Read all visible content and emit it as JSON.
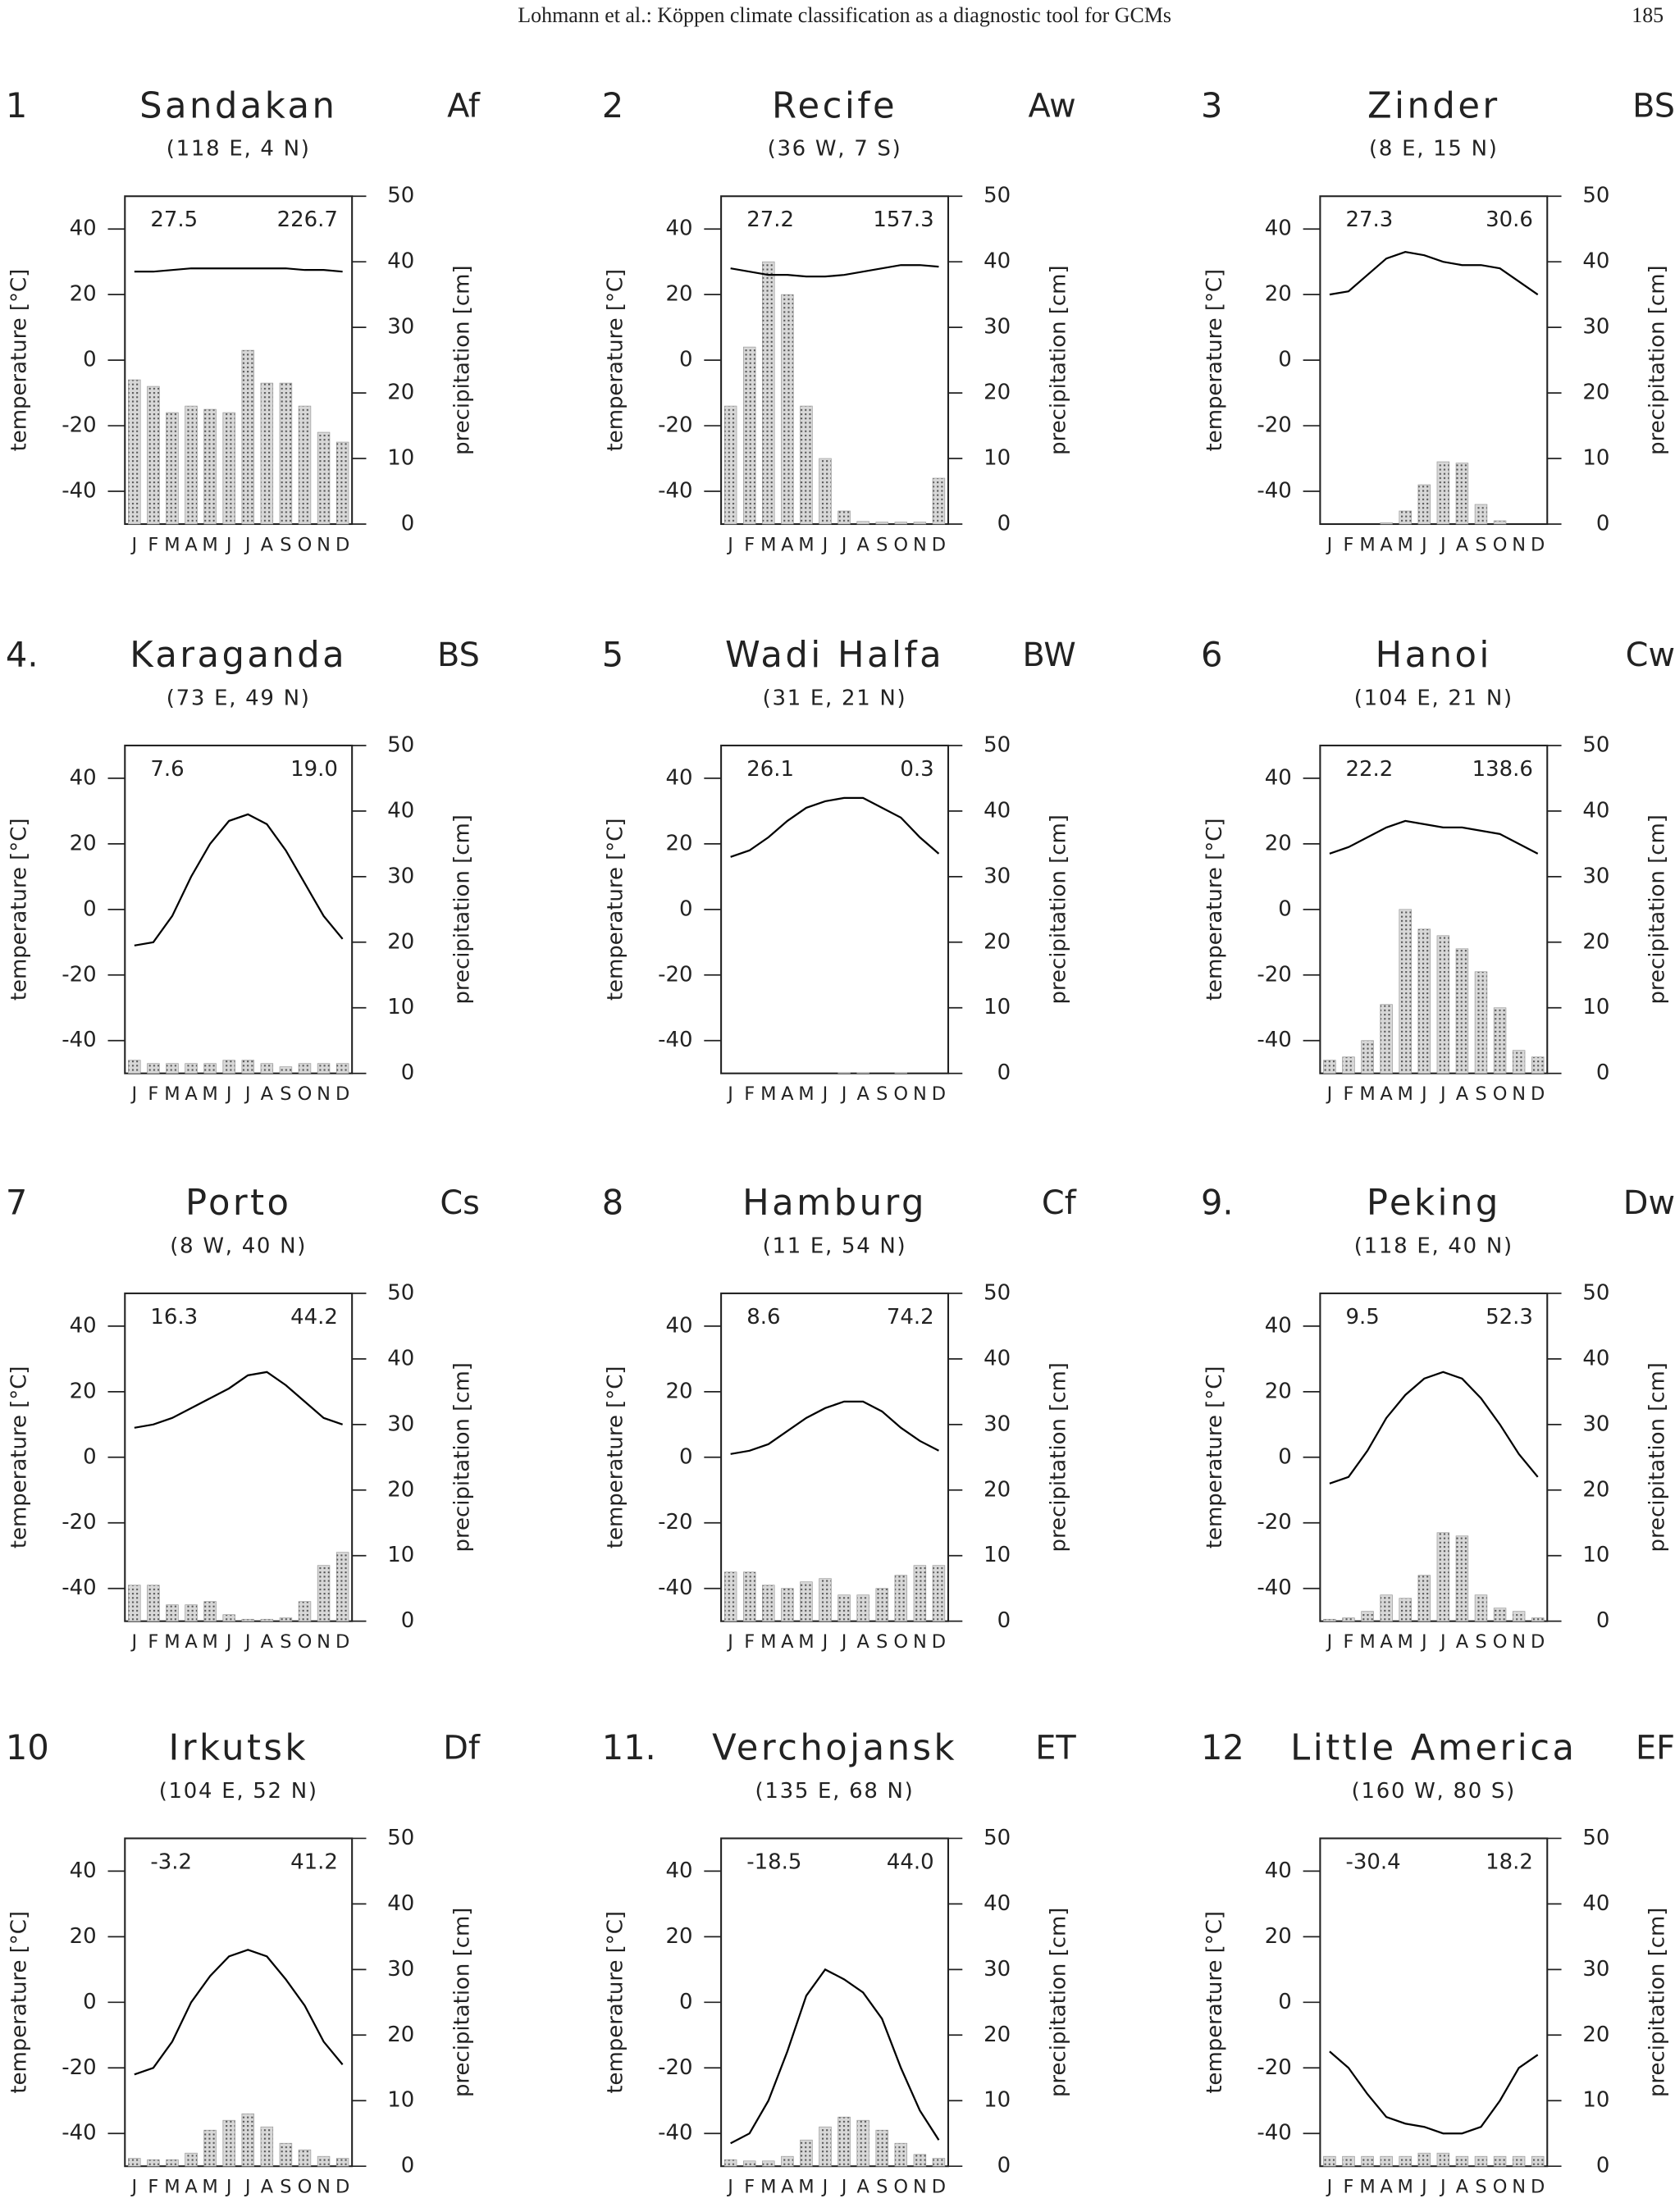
{
  "header": {
    "running_title": "Lohmann et al.: Köppen climate classification as a diagnostic tool for GCMs",
    "page_number": "185"
  },
  "chart_data": [
    {
      "type": "combo",
      "number": "1",
      "title": "Sandakan",
      "subtitle": "(118 E, 4 N)",
      "code": "Af",
      "annotations": [
        "27.5",
        "226.7"
      ],
      "y_label": "temperature [°C]",
      "y2_label": "precipitation [cm]",
      "categories": [
        "J",
        "F",
        "M",
        "A",
        "M",
        "J",
        "J",
        "A",
        "S",
        "O",
        "N",
        "D"
      ],
      "ylim": [
        -50,
        50
      ],
      "yticks": [
        -40,
        -20,
        0,
        20,
        40
      ],
      "y2lim": [
        0,
        50
      ],
      "y2ticks": [
        0,
        10,
        20,
        30,
        40,
        50
      ],
      "series": [
        {
          "type": "line",
          "color": "#000000",
          "values": [
            27,
            27,
            27.5,
            28,
            28,
            28,
            28,
            28,
            28,
            27.5,
            27.5,
            27
          ]
        },
        {
          "type": "bar",
          "axis": "y2",
          "color": "#999999",
          "values": [
            22,
            21,
            17,
            18,
            17.5,
            17,
            26.5,
            21.5,
            21.5,
            18,
            14,
            12.5
          ]
        }
      ]
    },
    {
      "type": "combo",
      "number": "2",
      "title": "Recife",
      "subtitle": "(36 W, 7 S)",
      "code": "Aw",
      "annotations": [
        "27.2",
        "157.3"
      ],
      "y_label": "temperature [°C]",
      "y2_label": "precipitation [cm]",
      "categories": [
        "J",
        "F",
        "M",
        "A",
        "M",
        "J",
        "J",
        "A",
        "S",
        "O",
        "N",
        "D"
      ],
      "ylim": [
        -50,
        50
      ],
      "yticks": [
        -40,
        -20,
        0,
        20,
        40
      ],
      "y2lim": [
        0,
        50
      ],
      "y2ticks": [
        0,
        10,
        20,
        30,
        40,
        50
      ],
      "series": [
        {
          "type": "line",
          "color": "#000000",
          "values": [
            28,
            27,
            26,
            26,
            25.5,
            25.5,
            26,
            27,
            28,
            29,
            29,
            28.5
          ]
        },
        {
          "type": "bar",
          "axis": "y2",
          "color": "#999999",
          "values": [
            18,
            27,
            40,
            35,
            18,
            10,
            2,
            0.4,
            0.3,
            0.3,
            0.3,
            7
          ]
        }
      ]
    },
    {
      "type": "combo",
      "number": "3",
      "title": "Zinder",
      "subtitle": "(8 E, 15 N)",
      "code": "BS",
      "annotations": [
        "27.3",
        "30.6"
      ],
      "y_label": "temperature [°C]",
      "y2_label": "precipitation [cm]",
      "categories": [
        "J",
        "F",
        "M",
        "A",
        "M",
        "J",
        "J",
        "A",
        "S",
        "O",
        "N",
        "D"
      ],
      "ylim": [
        -50,
        50
      ],
      "yticks": [
        -40,
        -20,
        0,
        20,
        40
      ],
      "y2lim": [
        0,
        50
      ],
      "y2ticks": [
        0,
        10,
        20,
        30,
        40,
        50
      ],
      "series": [
        {
          "type": "line",
          "color": "#000000",
          "values": [
            20,
            21,
            26,
            31,
            33,
            32,
            30,
            29,
            29,
            28,
            24,
            20
          ]
        },
        {
          "type": "bar",
          "axis": "y2",
          "color": "#999999",
          "values": [
            0,
            0,
            0,
            0.2,
            2,
            6,
            9.5,
            9.3,
            3,
            0.5,
            0,
            0
          ]
        }
      ]
    },
    {
      "type": "combo",
      "number": "4.",
      "title": "Karaganda",
      "subtitle": "(73 E, 49 N)",
      "code": "BS",
      "annotations": [
        "7.6",
        "19.0"
      ],
      "y_label": "temperature [°C]",
      "y2_label": "precipitation [cm]",
      "categories": [
        "J",
        "F",
        "M",
        "A",
        "M",
        "J",
        "J",
        "A",
        "S",
        "O",
        "N",
        "D"
      ],
      "ylim": [
        -50,
        50
      ],
      "yticks": [
        -40,
        -20,
        0,
        20,
        40
      ],
      "y2lim": [
        0,
        50
      ],
      "y2ticks": [
        0,
        10,
        20,
        30,
        40,
        50
      ],
      "series": [
        {
          "type": "line",
          "color": "#000000",
          "values": [
            -11,
            -10,
            -2,
            10,
            20,
            27,
            29,
            26,
            18,
            8,
            -2,
            -9
          ]
        },
        {
          "type": "bar",
          "axis": "y2",
          "color": "#999999",
          "values": [
            2,
            1.5,
            1.5,
            1.5,
            1.5,
            2,
            2,
            1.5,
            1,
            1.5,
            1.5,
            1.5
          ]
        }
      ]
    },
    {
      "type": "combo",
      "number": "5",
      "title": "Wadi Halfa",
      "subtitle": "(31 E, 21 N)",
      "code": "BW",
      "annotations": [
        "26.1",
        "0.3"
      ],
      "y_label": "temperature [°C]",
      "y2_label": "precipitation [cm]",
      "categories": [
        "J",
        "F",
        "M",
        "A",
        "M",
        "J",
        "J",
        "A",
        "S",
        "O",
        "N",
        "D"
      ],
      "ylim": [
        -50,
        50
      ],
      "yticks": [
        -40,
        -20,
        0,
        20,
        40
      ],
      "y2lim": [
        0,
        50
      ],
      "y2ticks": [
        0,
        10,
        20,
        30,
        40,
        50
      ],
      "series": [
        {
          "type": "line",
          "color": "#000000",
          "values": [
            16,
            18,
            22,
            27,
            31,
            33,
            34,
            34,
            31,
            28,
            22,
            17
          ]
        },
        {
          "type": "bar",
          "axis": "y2",
          "color": "#999999",
          "values": [
            0,
            0,
            0,
            0,
            0,
            0,
            0.1,
            0.1,
            0,
            0.1,
            0,
            0
          ]
        }
      ]
    },
    {
      "type": "combo",
      "number": "6",
      "title": "Hanoi",
      "subtitle": "(104 E, 21 N)",
      "code": "Cw",
      "annotations": [
        "22.2",
        "138.6"
      ],
      "y_label": "temperature [°C]",
      "y2_label": "precipitation [cm]",
      "categories": [
        "J",
        "F",
        "M",
        "A",
        "M",
        "J",
        "J",
        "A",
        "S",
        "O",
        "N",
        "D"
      ],
      "ylim": [
        -50,
        50
      ],
      "yticks": [
        -40,
        -20,
        0,
        20,
        40
      ],
      "y2lim": [
        0,
        50
      ],
      "y2ticks": [
        0,
        10,
        20,
        30,
        40,
        50
      ],
      "series": [
        {
          "type": "line",
          "color": "#000000",
          "values": [
            17,
            19,
            22,
            25,
            27,
            26,
            25,
            25,
            24,
            23,
            20,
            17
          ]
        },
        {
          "type": "bar",
          "axis": "y2",
          "color": "#999999",
          "values": [
            2,
            2.5,
            5,
            10.5,
            25,
            22,
            21,
            19,
            15.5,
            10,
            3.5,
            2.5
          ]
        }
      ]
    },
    {
      "type": "combo",
      "number": "7",
      "title": "Porto",
      "subtitle": "(8 W, 40 N)",
      "code": "Cs",
      "annotations": [
        "16.3",
        "44.2"
      ],
      "y_label": "temperature [°C]",
      "y2_label": "precipitation [cm]",
      "categories": [
        "J",
        "F",
        "M",
        "A",
        "M",
        "J",
        "J",
        "A",
        "S",
        "O",
        "N",
        "D"
      ],
      "ylim": [
        -50,
        50
      ],
      "yticks": [
        -40,
        -20,
        0,
        20,
        40
      ],
      "y2lim": [
        0,
        50
      ],
      "y2ticks": [
        0,
        10,
        20,
        30,
        40,
        50
      ],
      "series": [
        {
          "type": "line",
          "color": "#000000",
          "values": [
            9,
            10,
            12,
            15,
            18,
            21,
            25,
            26,
            22,
            17,
            12,
            10
          ]
        },
        {
          "type": "bar",
          "axis": "y2",
          "color": "#999999",
          "values": [
            5.5,
            5.5,
            2.5,
            2.5,
            3,
            1,
            0.3,
            0.3,
            0.5,
            3,
            8.5,
            10.5
          ]
        }
      ]
    },
    {
      "type": "combo",
      "number": "8",
      "title": "Hamburg",
      "subtitle": "(11 E, 54 N)",
      "code": "Cf",
      "annotations": [
        "8.6",
        "74.2"
      ],
      "y_label": "temperature [°C]",
      "y2_label": "precipitation [cm]",
      "categories": [
        "J",
        "F",
        "M",
        "A",
        "M",
        "J",
        "J",
        "A",
        "S",
        "O",
        "N",
        "D"
      ],
      "ylim": [
        -50,
        50
      ],
      "yticks": [
        -40,
        -20,
        0,
        20,
        40
      ],
      "y2lim": [
        0,
        50
      ],
      "y2ticks": [
        0,
        10,
        20,
        30,
        40,
        50
      ],
      "series": [
        {
          "type": "line",
          "color": "#000000",
          "values": [
            1,
            2,
            4,
            8,
            12,
            15,
            17,
            17,
            14,
            9,
            5,
            2
          ]
        },
        {
          "type": "bar",
          "axis": "y2",
          "color": "#999999",
          "values": [
            7.5,
            7.5,
            5.5,
            5,
            6,
            6.5,
            4,
            4,
            5,
            7,
            8.5,
            8.5
          ]
        }
      ]
    },
    {
      "type": "combo",
      "number": "9.",
      "title": "Peking",
      "subtitle": "(118 E, 40 N)",
      "code": "Dw",
      "annotations": [
        "9.5",
        "52.3"
      ],
      "y_label": "temperature [°C]",
      "y2_label": "precipitation [cm]",
      "categories": [
        "J",
        "F",
        "M",
        "A",
        "M",
        "J",
        "J",
        "A",
        "S",
        "O",
        "N",
        "D"
      ],
      "ylim": [
        -50,
        50
      ],
      "yticks": [
        -40,
        -20,
        0,
        20,
        40
      ],
      "y2lim": [
        0,
        50
      ],
      "y2ticks": [
        0,
        10,
        20,
        30,
        40,
        50
      ],
      "series": [
        {
          "type": "line",
          "color": "#000000",
          "values": [
            -8,
            -6,
            2,
            12,
            19,
            24,
            26,
            24,
            18,
            10,
            1,
            -6
          ]
        },
        {
          "type": "bar",
          "axis": "y2",
          "color": "#999999",
          "values": [
            0.3,
            0.5,
            1.5,
            4,
            3.5,
            7,
            13.5,
            13,
            4,
            2,
            1.5,
            0.5
          ]
        }
      ]
    },
    {
      "type": "combo",
      "number": "10",
      "title": "Irkutsk",
      "subtitle": "(104 E, 52 N)",
      "code": "Df",
      "annotations": [
        "-3.2",
        "41.2"
      ],
      "y_label": "temperature [°C]",
      "y2_label": "precipitation [cm]",
      "categories": [
        "J",
        "F",
        "M",
        "A",
        "M",
        "J",
        "J",
        "A",
        "S",
        "O",
        "N",
        "D"
      ],
      "ylim": [
        -50,
        50
      ],
      "yticks": [
        -40,
        -20,
        0,
        20,
        40
      ],
      "y2lim": [
        0,
        50
      ],
      "y2ticks": [
        0,
        10,
        20,
        30,
        40,
        50
      ],
      "series": [
        {
          "type": "line",
          "color": "#000000",
          "values": [
            -22,
            -20,
            -12,
            0,
            8,
            14,
            16,
            14,
            7,
            -1,
            -12,
            -19
          ]
        },
        {
          "type": "bar",
          "axis": "y2",
          "color": "#999999",
          "values": [
            1.2,
            1,
            1,
            2,
            5.5,
            7,
            8,
            6,
            3.5,
            2.5,
            1.5,
            1.2
          ]
        }
      ]
    },
    {
      "type": "combo",
      "number": "11.",
      "title": "Verchojansk",
      "subtitle": "(135 E, 68 N)",
      "code": "ET",
      "annotations": [
        "-18.5",
        "44.0"
      ],
      "y_label": "temperature [°C]",
      "y2_label": "precipitation [cm]",
      "categories": [
        "J",
        "F",
        "M",
        "A",
        "M",
        "J",
        "J",
        "A",
        "S",
        "O",
        "N",
        "D"
      ],
      "ylim": [
        -50,
        50
      ],
      "yticks": [
        -40,
        -20,
        0,
        20,
        40
      ],
      "y2lim": [
        0,
        50
      ],
      "y2ticks": [
        0,
        10,
        20,
        30,
        40,
        50
      ],
      "series": [
        {
          "type": "line",
          "color": "#000000",
          "values": [
            -43,
            -40,
            -30,
            -15,
            2,
            10,
            7,
            3,
            -5,
            -20,
            -33,
            -42
          ]
        },
        {
          "type": "bar",
          "axis": "y2",
          "color": "#999999",
          "values": [
            1,
            0.8,
            0.8,
            1.5,
            4,
            6,
            7.5,
            7,
            5.5,
            3.5,
            1.8,
            1.2
          ]
        }
      ]
    },
    {
      "type": "combo",
      "number": "12",
      "title": "Little America",
      "subtitle": "(160 W, 80 S)",
      "code": "EF",
      "annotations": [
        "-30.4",
        "18.2"
      ],
      "y_label": "temperature [°C]",
      "y2_label": "precipitation [cm]",
      "categories": [
        "J",
        "F",
        "M",
        "A",
        "M",
        "J",
        "J",
        "A",
        "S",
        "O",
        "N",
        "D"
      ],
      "ylim": [
        -50,
        50
      ],
      "yticks": [
        -40,
        -20,
        0,
        20,
        40
      ],
      "y2lim": [
        0,
        50
      ],
      "y2ticks": [
        0,
        10,
        20,
        30,
        40,
        50
      ],
      "series": [
        {
          "type": "line",
          "color": "#000000",
          "values": [
            -15,
            -20,
            -28,
            -35,
            -37,
            -38,
            -40,
            -40,
            -38,
            -30,
            -20,
            -16
          ]
        },
        {
          "type": "bar",
          "axis": "y2",
          "color": "#999999",
          "values": [
            1.5,
            1.5,
            1.5,
            1.5,
            1.5,
            2,
            2,
            1.5,
            1.5,
            1.5,
            1.5,
            1.5
          ]
        }
      ]
    }
  ]
}
